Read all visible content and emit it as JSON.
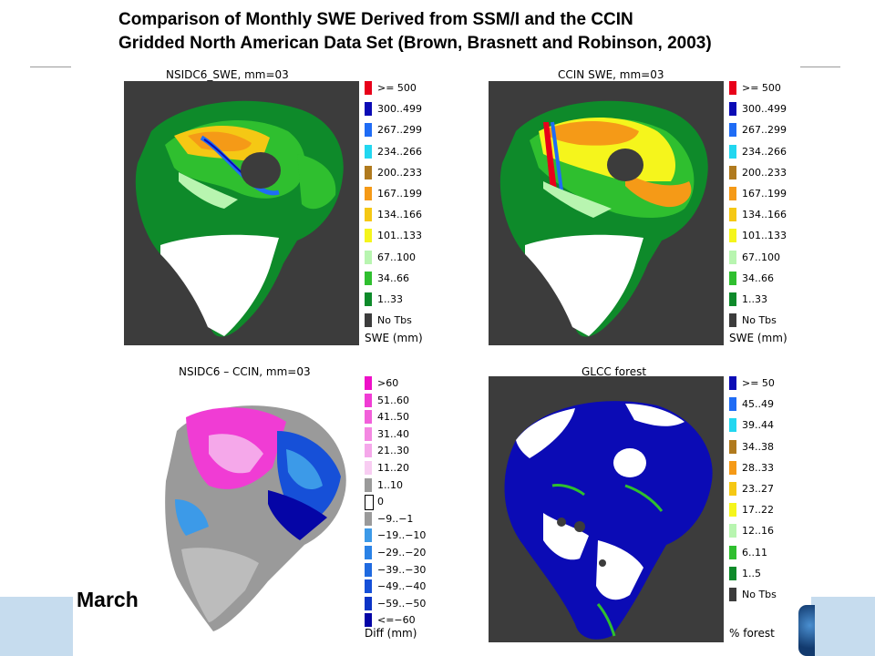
{
  "title": {
    "line1": "Comparison of Monthly SWE Derived from SSM/I and the CCIN",
    "line2": "Gridded North American Data Set (Brown, Brasnett and Robinson, 2003)"
  },
  "month_label": "March",
  "panels": {
    "nsidc": {
      "title": "NSIDC6_SWE, mm=03",
      "unit": "SWE (mm)",
      "legend": [
        {
          "label": ">= 500",
          "color": "#e8001a"
        },
        {
          "label": "300..499",
          "color": "#0b0bb5"
        },
        {
          "label": "267..299",
          "color": "#1f6cf5"
        },
        {
          "label": "234..266",
          "color": "#22d7f0"
        },
        {
          "label": "200..233",
          "color": "#b07a1e"
        },
        {
          "label": "167..199",
          "color": "#f59a17"
        },
        {
          "label": "134..166",
          "color": "#f5c814"
        },
        {
          "label": "101..133",
          "color": "#f5f51c"
        },
        {
          "label": "67..100",
          "color": "#b8f5b0"
        },
        {
          "label": "34..66",
          "color": "#2fbf2f"
        },
        {
          "label": "1..33",
          "color": "#0e8a2a"
        },
        {
          "label": "No Tbs",
          "color": "#3c3c3c"
        }
      ]
    },
    "ccin": {
      "title": "CCIN SWE, mm=03",
      "unit": "SWE (mm)",
      "legend": [
        {
          "label": ">= 500",
          "color": "#e8001a"
        },
        {
          "label": "300..499",
          "color": "#0b0bb5"
        },
        {
          "label": "267..299",
          "color": "#1f6cf5"
        },
        {
          "label": "234..266",
          "color": "#22d7f0"
        },
        {
          "label": "200..233",
          "color": "#b07a1e"
        },
        {
          "label": "167..199",
          "color": "#f59a17"
        },
        {
          "label": "134..166",
          "color": "#f5c814"
        },
        {
          "label": "101..133",
          "color": "#f5f51c"
        },
        {
          "label": "67..100",
          "color": "#b8f5b0"
        },
        {
          "label": "34..66",
          "color": "#2fbf2f"
        },
        {
          "label": "1..33",
          "color": "#0e8a2a"
        },
        {
          "label": "No Tbs",
          "color": "#3c3c3c"
        }
      ]
    },
    "diff": {
      "title": "NSIDC6 – CCIN, mm=03",
      "unit": "Diff (mm)",
      "legend": [
        {
          "label": ">60",
          "color": "#ee10c8"
        },
        {
          "label": "51..60",
          "color": "#f03cd4"
        },
        {
          "label": "41..50",
          "color": "#f260da"
        },
        {
          "label": "31..40",
          "color": "#f488e2"
        },
        {
          "label": "21..30",
          "color": "#f5a8ea"
        },
        {
          "label": "11..20",
          "color": "#f8cdf2"
        },
        {
          "label": "1..10",
          "color": "#9a9a9a"
        },
        {
          "label": "0",
          "color": "#ffffff"
        },
        {
          "label": "−9..−1",
          "color": "#9a9a9a"
        },
        {
          "label": "−19..−10",
          "color": "#3c9ae8"
        },
        {
          "label": "−29..−20",
          "color": "#2a82e6"
        },
        {
          "label": "−39..−30",
          "color": "#1f6ae0"
        },
        {
          "label": "−49..−40",
          "color": "#1650d8"
        },
        {
          "label": "−59..−50",
          "color": "#0c34c6"
        },
        {
          "label": "<=−60",
          "color": "#0505a6"
        }
      ]
    },
    "forest": {
      "title": "GLCC forest",
      "unit": "% forest",
      "legend": [
        {
          "label": ">= 50",
          "color": "#0b0bb5"
        },
        {
          "label": "45..49",
          "color": "#1f6cf5"
        },
        {
          "label": "39..44",
          "color": "#22d7f0"
        },
        {
          "label": "34..38",
          "color": "#b07a1e"
        },
        {
          "label": "28..33",
          "color": "#f59a17"
        },
        {
          "label": "23..27",
          "color": "#f5c814"
        },
        {
          "label": "17..22",
          "color": "#f5f51c"
        },
        {
          "label": "12..16",
          "color": "#b8f5b0"
        },
        {
          "label": "6..11",
          "color": "#2fbf2f"
        },
        {
          "label": "1..5",
          "color": "#0e8a2a"
        },
        {
          "label": "No Tbs",
          "color": "#3c3c3c"
        }
      ]
    }
  }
}
